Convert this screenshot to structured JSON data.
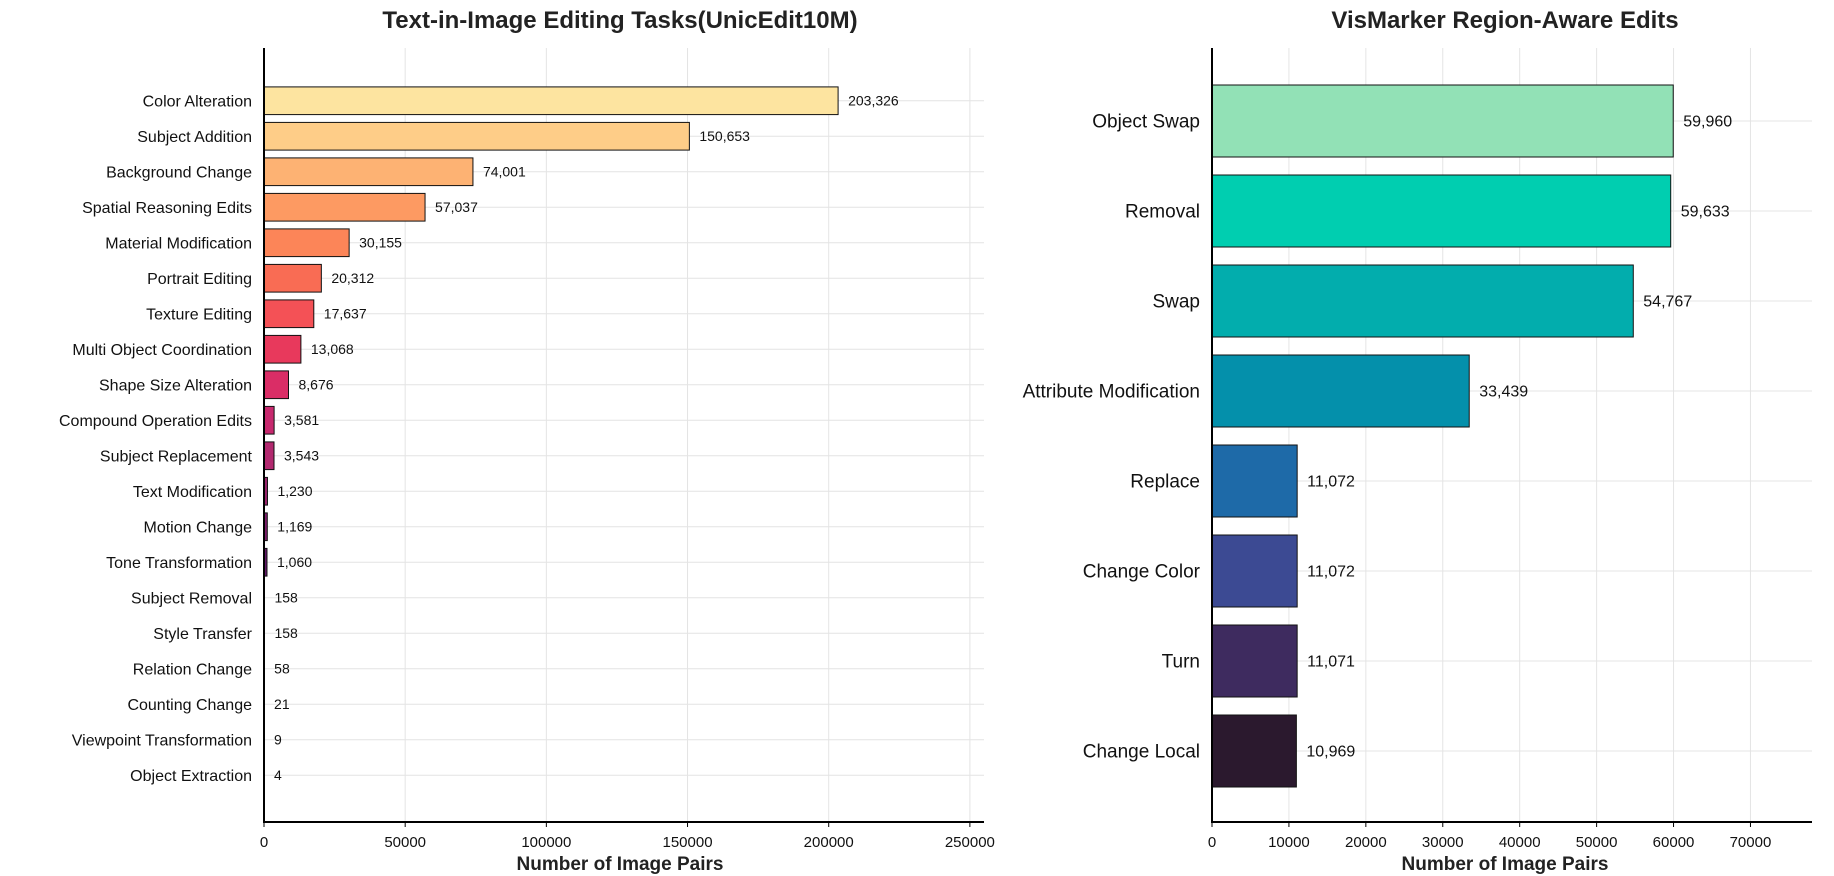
{
  "chart_data": [
    {
      "type": "bar",
      "orientation": "horizontal",
      "title": "Text-in-Image Editing Tasks(UnicEdit10M)",
      "xlabel": "Number of Image Pairs",
      "ylabel": "",
      "xlim": [
        0,
        255000
      ],
      "xticks": [
        0,
        50000,
        100000,
        150000,
        200000,
        250000
      ],
      "grid": true,
      "categories": [
        "Color Alteration",
        "Subject Addition",
        "Background Change",
        "Spatial Reasoning Edits",
        "Material Modification",
        "Portrait Editing",
        "Texture Editing",
        "Multi Object Coordination",
        "Shape Size Alteration",
        "Compound Operation Edits",
        "Subject Replacement",
        "Text Modification",
        "Motion Change",
        "Tone Transformation",
        "Subject Removal",
        "Style Transfer",
        "Relation Change",
        "Counting Change",
        "Viewpoint Transformation",
        "Object Extraction"
      ],
      "values": [
        203326,
        150653,
        74001,
        57037,
        30155,
        20312,
        17637,
        13068,
        8676,
        3581,
        3543,
        1230,
        1169,
        1060,
        158,
        158,
        58,
        21,
        9,
        4
      ],
      "value_labels": [
        "203,326",
        "150,653",
        "74,001",
        "57,037",
        "30,155",
        "20,312",
        "17,637",
        "13,068",
        "8,676",
        "3,581",
        "3,543",
        "1,230",
        "1,169",
        "1,060",
        "158",
        "158",
        "58",
        "21",
        "9",
        "4"
      ],
      "colors": [
        "#fde4a0",
        "#fecd88",
        "#fdb273",
        "#fd9a62",
        "#fc8558",
        "#f96c54",
        "#f45156",
        "#e8395c",
        "#da2d66",
        "#c7296e",
        "#b2296f",
        "#99256d",
        "#7e1e6c",
        "#631868",
        "#4c1262",
        "#3a0f56",
        "#290b45",
        "#1a0832",
        "#0d051e",
        "#05030f"
      ]
    },
    {
      "type": "bar",
      "orientation": "horizontal",
      "title": "VisMarker Region-Aware Edits",
      "xlabel": "Number of Image Pairs",
      "ylabel": "",
      "xlim": [
        0,
        78000
      ],
      "xticks": [
        0,
        10000,
        20000,
        30000,
        40000,
        50000,
        60000,
        70000
      ],
      "grid": true,
      "categories": [
        "Object Swap",
        "Removal",
        "Swap",
        "Attribute Modification",
        "Replace",
        "Change Color",
        "Turn",
        "Change Local"
      ],
      "values": [
        59960,
        59633,
        54767,
        33439,
        11072,
        11072,
        11071,
        10969
      ],
      "value_labels": [
        "59,960",
        "59,633",
        "54,767",
        "33,439",
        "11,072",
        "11,072",
        "11,071",
        "10,969"
      ],
      "colors": [
        "#92e1b6",
        "#00ceb0",
        "#02adad",
        "#0490ab",
        "#1e6aa8",
        "#3c4a93",
        "#3e2b5f",
        "#2b192e"
      ]
    }
  ]
}
